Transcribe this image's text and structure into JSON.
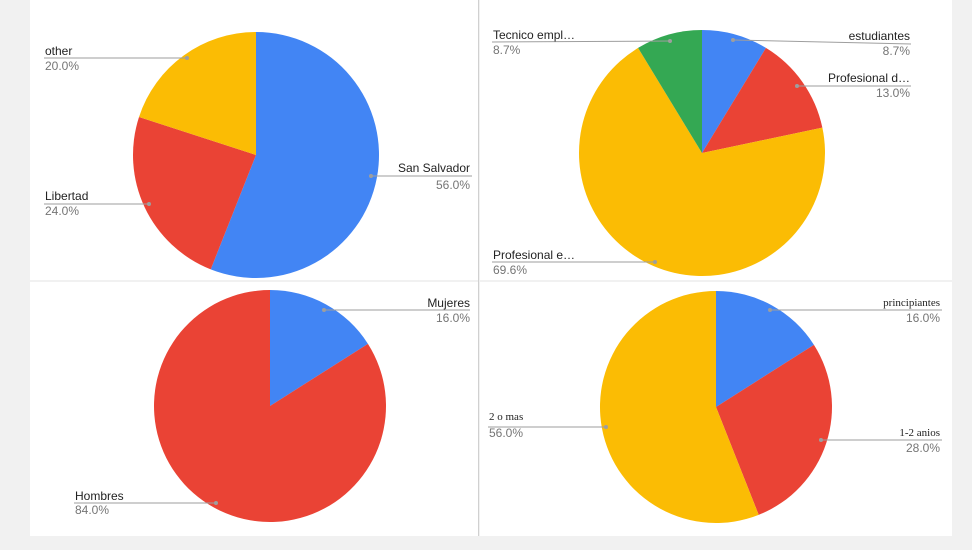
{
  "colors": {
    "blue": "#4285f4",
    "red": "#ea4335",
    "yellow": "#fbbc04",
    "green": "#34a853",
    "background": "#f1f1f1",
    "panel": "#ffffff"
  },
  "chart_data": [
    {
      "type": "pie",
      "slices": [
        {
          "label": "San Salvador",
          "value": 56.0,
          "pct": "56.0%",
          "color": "#4285f4"
        },
        {
          "label": "Libertad",
          "value": 24.0,
          "pct": "24.0%",
          "color": "#ea4335"
        },
        {
          "label": "other",
          "value": 20.0,
          "pct": "20.0%",
          "color": "#fbbc04"
        }
      ]
    },
    {
      "type": "pie",
      "slices": [
        {
          "label": "estudiantes",
          "value": 8.7,
          "pct": "8.7%",
          "color": "#4285f4"
        },
        {
          "label": "Profesional d…",
          "value": 13.0,
          "pct": "13.0%",
          "color": "#ea4335"
        },
        {
          "label": "Profesional e…",
          "value": 69.6,
          "pct": "69.6%",
          "color": "#fbbc04"
        },
        {
          "label": "Tecnico empl…",
          "value": 8.7,
          "pct": "8.7%",
          "color": "#34a853"
        }
      ]
    },
    {
      "type": "pie",
      "slices": [
        {
          "label": "Mujeres",
          "value": 16.0,
          "pct": "16.0%",
          "color": "#4285f4"
        },
        {
          "label": "Hombres",
          "value": 84.0,
          "pct": "84.0%",
          "color": "#ea4335"
        }
      ]
    },
    {
      "type": "pie",
      "slices": [
        {
          "label": "principiantes",
          "value": 16.0,
          "pct": "16.0%",
          "color": "#4285f4"
        },
        {
          "label": "1-2 anios",
          "value": 28.0,
          "pct": "28.0%",
          "color": "#ea4335"
        },
        {
          "label": "2 o mas",
          "value": 56.0,
          "pct": "56.0%",
          "color": "#fbbc04"
        }
      ]
    }
  ]
}
